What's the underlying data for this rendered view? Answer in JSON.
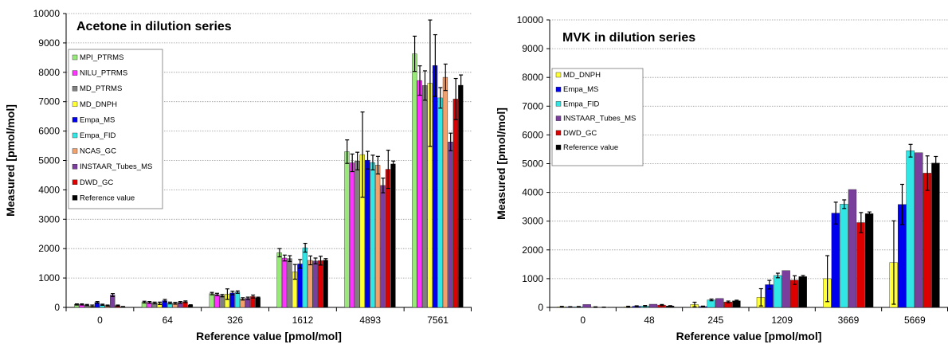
{
  "chart_data": [
    {
      "type": "bar",
      "title": "Acetone  in dilution series",
      "xlabel": "Reference value [pmol/mol]",
      "ylabel": "Measured [pmol/mol]",
      "ylim": [
        0,
        10000
      ],
      "yticks": [
        0,
        1000,
        2000,
        3000,
        4000,
        5000,
        6000,
        7000,
        8000,
        9000,
        10000
      ],
      "grid": true,
      "legend_position": "left",
      "categories": [
        "0",
        "64",
        "326",
        "1612",
        "4893",
        "7561"
      ],
      "series": [
        {
          "name": "MPI_PTRMS",
          "color": "#99e87a",
          "values": [
            100,
            180,
            470,
            1860,
            5300,
            8630
          ],
          "errors": [
            20,
            30,
            40,
            140,
            400,
            600
          ]
        },
        {
          "name": "NILU_PTRMS",
          "color": "#ff33ff",
          "values": [
            100,
            170,
            440,
            1680,
            4920,
            7720
          ],
          "errors": [
            20,
            30,
            40,
            100,
            300,
            500
          ]
        },
        {
          "name": "MD_PTRMS",
          "color": "#808080",
          "values": [
            80,
            150,
            400,
            1660,
            4980,
            7550
          ],
          "errors": [
            20,
            30,
            40,
            100,
            300,
            500
          ]
        },
        {
          "name": "MD_DNPH",
          "color": "#ffff33",
          "values": [
            50,
            140,
            450,
            1210,
            5200,
            7630
          ],
          "errors": [
            30,
            40,
            180,
            250,
            1450,
            2150
          ]
        },
        {
          "name": "Empa_MS",
          "color": "#0000ee",
          "values": [
            170,
            230,
            490,
            1480,
            5010,
            8230
          ],
          "errors": [
            30,
            40,
            60,
            150,
            300,
            1050
          ]
        },
        {
          "name": "Empa_FID",
          "color": "#33e6e6",
          "values": [
            90,
            150,
            520,
            2030,
            4930,
            7130
          ],
          "errors": [
            20,
            30,
            40,
            150,
            250,
            350
          ]
        },
        {
          "name": "NCAS_GC",
          "color": "#f2a06c",
          "values": [
            60,
            140,
            290,
            1600,
            4840,
            7830
          ],
          "errors": [
            20,
            30,
            40,
            150,
            300,
            450
          ]
        },
        {
          "name": "INSTAAR_Tubes_MS",
          "color": "#7a3e9d",
          "values": [
            420,
            170,
            310,
            1580,
            4150,
            5630
          ],
          "errors": [
            50,
            30,
            40,
            100,
            250,
            300
          ]
        },
        {
          "name": "DWD_GC",
          "color": "#dd0000",
          "values": [
            60,
            190,
            370,
            1590,
            4700,
            7090
          ],
          "errors": [
            20,
            30,
            50,
            150,
            650,
            700
          ]
        },
        {
          "name": "Reference value",
          "color": "#000000",
          "values": [
            20,
            80,
            330,
            1610,
            4880,
            7560
          ],
          "errors": [
            10,
            10,
            20,
            50,
            100,
            350
          ]
        }
      ]
    },
    {
      "type": "bar",
      "title": "MVK in dilution series",
      "xlabel": "Reference value [pmol/mol]",
      "ylabel": "Measured [pmol/mol]",
      "ylim": [
        0,
        10000
      ],
      "yticks": [
        0,
        1000,
        2000,
        3000,
        4000,
        5000,
        6000,
        7000,
        8000,
        9000,
        10000
      ],
      "grid": true,
      "legend_position": "left",
      "categories": [
        "0",
        "48",
        "245",
        "1209",
        "3669",
        "5669"
      ],
      "series": [
        {
          "name": "MD_DNPH",
          "color": "#ffff33",
          "values": [
            20,
            20,
            100,
            350,
            1000,
            1560
          ],
          "errors": [
            15,
            20,
            80,
            300,
            800,
            1450
          ]
        },
        {
          "name": "Empa_MS",
          "color": "#0000ee",
          "values": [
            15,
            40,
            30,
            790,
            3280,
            3580
          ],
          "errors": [
            10,
            15,
            15,
            150,
            380,
            700
          ]
        },
        {
          "name": "Empa_FID",
          "color": "#33e6e6",
          "values": [
            20,
            50,
            260,
            1110,
            3590,
            5450
          ],
          "errors": [
            10,
            15,
            30,
            80,
            150,
            220
          ]
        },
        {
          "name": "INSTAAR_Tubes_MS",
          "color": "#7a3e9d",
          "values": [
            100,
            110,
            310,
            1280,
            4100,
            5380
          ],
          "errors": [
            0,
            0,
            0,
            0,
            0,
            0
          ]
        },
        {
          "name": "DWD_GC",
          "color": "#dd0000",
          "values": [
            10,
            80,
            190,
            950,
            2950,
            4670
          ],
          "errors": [
            10,
            20,
            30,
            150,
            350,
            600
          ]
        },
        {
          "name": "Reference value",
          "color": "#000000",
          "values": [
            5,
            50,
            230,
            1070,
            3260,
            5020
          ],
          "errors": [
            5,
            10,
            20,
            40,
            60,
            230
          ]
        }
      ]
    }
  ]
}
